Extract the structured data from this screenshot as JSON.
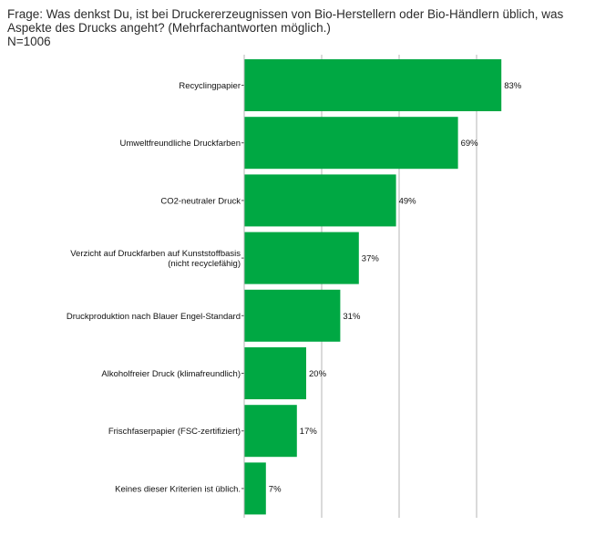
{
  "question_line1": "Frage: Was denkst Du, ist bei Druckererzeugnissen von Bio-Herstellern oder Bio-Händlern üblich, was",
  "question_line2": "Aspekte des Drucks angeht? (Mehrfachantworten möglich.)",
  "sample_size": "N=1006",
  "colors": {
    "bar": "#00a843",
    "grid": "#b5b5b5",
    "text": "#222222"
  },
  "chart_data": {
    "type": "bar",
    "orientation": "horizontal",
    "title": "",
    "xlabel": "",
    "ylabel": "",
    "xlim": [
      0,
      100
    ],
    "grid": true,
    "value_suffix": "%",
    "categories": [
      [
        "Recyclingpapier"
      ],
      [
        "Umweltfreundliche Druckfarben"
      ],
      [
        "CO2-neutraler Druck"
      ],
      [
        "Verzicht auf Druckfarben auf Kunststoffbasis",
        "(nicht recyclefähig)"
      ],
      [
        "Druckproduktion nach Blauer Engel-Standard"
      ],
      [
        "Alkoholfreier Druck (klimafreundlich)"
      ],
      [
        "Frischfaserpapier (FSC-zertifiziert)"
      ],
      [
        "Keines dieser Kriterien ist üblich."
      ]
    ],
    "values": [
      83,
      69,
      49,
      37,
      31,
      20,
      17,
      7
    ]
  }
}
